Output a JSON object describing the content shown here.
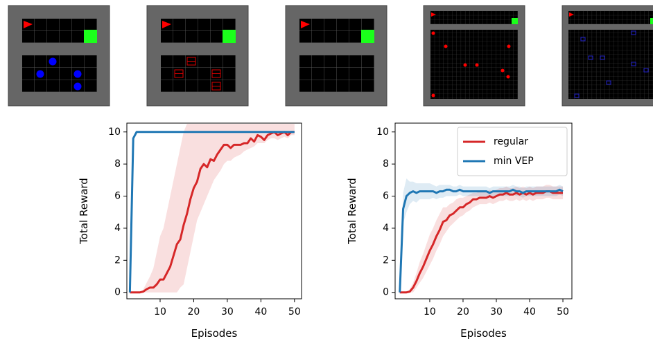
{
  "chart_data": [
    {
      "type": "line",
      "xlabel": "Episodes",
      "ylabel": "Total Reward",
      "x": [
        1,
        2,
        3,
        4,
        5,
        6,
        7,
        8,
        9,
        10,
        11,
        12,
        13,
        14,
        15,
        16,
        17,
        18,
        19,
        20,
        21,
        22,
        23,
        24,
        25,
        26,
        27,
        28,
        29,
        30,
        31,
        32,
        33,
        34,
        35,
        36,
        37,
        38,
        39,
        40,
        41,
        42,
        43,
        44,
        45,
        46,
        47,
        48,
        49,
        50
      ],
      "xlim": [
        0.1,
        52.1
      ],
      "xticks": [
        10,
        20,
        30,
        40,
        50
      ],
      "ylim": [
        -0.4,
        10.55
      ],
      "yticks": [
        0,
        2,
        4,
        6,
        8,
        10
      ],
      "series": [
        {
          "color": "#d62728",
          "values": [
            0,
            0,
            0,
            0,
            0.05,
            0.2,
            0.3,
            0.3,
            0.5,
            0.8,
            0.8,
            1.2,
            1.6,
            2.3,
            3.0,
            3.3,
            4.2,
            4.9,
            5.8,
            6.5,
            6.9,
            7.7,
            8.0,
            7.8,
            8.3,
            8.2,
            8.6,
            8.9,
            9.2,
            9.2,
            9.0,
            9.2,
            9.2,
            9.2,
            9.3,
            9.3,
            9.6,
            9.4,
            9.8,
            9.7,
            9.5,
            9.8,
            9.9,
            10.0,
            9.8,
            9.9,
            10.0,
            9.8,
            10.0,
            10.0
          ],
          "upper": [
            0,
            0,
            0,
            0,
            0.2,
            0.6,
            1.0,
            1.5,
            2.5,
            3.5,
            4.0,
            5.0,
            6.0,
            7.0,
            8.0,
            9.0,
            10.0,
            10.5,
            10.5,
            10.5,
            10.5,
            10.5,
            10.5,
            10.5,
            10.5,
            10.5,
            10.5,
            10.5,
            10.5,
            10.5,
            10.5,
            10.5,
            10.5,
            10.5,
            10.5,
            10.5,
            10.5,
            10.5,
            10.5,
            10.5,
            10.5,
            10.5,
            10.5,
            10.5,
            10.5,
            10.5,
            10.5,
            10.5,
            10.5,
            10.5
          ],
          "lower": [
            0,
            0,
            0,
            0,
            0,
            0,
            0,
            0,
            0,
            0,
            0,
            0,
            0,
            0,
            0,
            0.3,
            0.5,
            1.5,
            2.5,
            3.5,
            4.5,
            5.0,
            5.5,
            6.0,
            6.5,
            7.0,
            7.3,
            7.6,
            8.0,
            8.2,
            8.2,
            8.4,
            8.5,
            8.6,
            8.8,
            8.9,
            9.0,
            9.1,
            9.3,
            9.3,
            9.3,
            9.5,
            9.6,
            9.6,
            9.5,
            9.6,
            9.7,
            9.6,
            9.8,
            9.8
          ]
        },
        {
          "color": "#1f77b4",
          "values": [
            0,
            9.6,
            10,
            10,
            10,
            10,
            10,
            10,
            10,
            10,
            10,
            10,
            10,
            10,
            10,
            10,
            10,
            10,
            10,
            10,
            10,
            10,
            10,
            10,
            10,
            10,
            10,
            10,
            10,
            10,
            10,
            10,
            10,
            10,
            10,
            10,
            10,
            10,
            10,
            10,
            10,
            10,
            10,
            10,
            10,
            10,
            10,
            10,
            10,
            10
          ]
        }
      ]
    },
    {
      "type": "line",
      "xlabel": "Episodes",
      "ylabel": "Total Reward",
      "legend": "upper right",
      "x": [
        1,
        2,
        3,
        4,
        5,
        6,
        7,
        8,
        9,
        10,
        11,
        12,
        13,
        14,
        15,
        16,
        17,
        18,
        19,
        20,
        21,
        22,
        23,
        24,
        25,
        26,
        27,
        28,
        29,
        30,
        31,
        32,
        33,
        34,
        35,
        36,
        37,
        38,
        39,
        40,
        41,
        42,
        43,
        44,
        45,
        46,
        47,
        48,
        49,
        50
      ],
      "xlim": [
        -0.4,
        52.7
      ],
      "xticks": [
        10,
        20,
        30,
        40,
        50
      ],
      "ylim": [
        -0.4,
        10.55
      ],
      "yticks": [
        0,
        2,
        4,
        6,
        8,
        10
      ],
      "series": [
        {
          "name": "regular",
          "color": "#d62728",
          "values": [
            0,
            0,
            0,
            0.05,
            0.3,
            0.7,
            1.2,
            1.6,
            2.1,
            2.6,
            3.0,
            3.5,
            3.9,
            4.4,
            4.5,
            4.8,
            4.9,
            5.1,
            5.3,
            5.3,
            5.5,
            5.6,
            5.8,
            5.8,
            5.9,
            5.9,
            5.9,
            6.0,
            5.9,
            6.0,
            6.1,
            6.1,
            6.2,
            6.1,
            6.1,
            6.2,
            6.1,
            6.2,
            6.1,
            6.2,
            6.1,
            6.2,
            6.2,
            6.2,
            6.3,
            6.3,
            6.2,
            6.2,
            6.2,
            6.2
          ],
          "upper": [
            0,
            0,
            0,
            0.2,
            0.6,
            1.2,
            1.9,
            2.4,
            3.0,
            3.6,
            4.0,
            4.5,
            4.9,
            5.3,
            5.3,
            5.5,
            5.6,
            5.8,
            5.9,
            5.9,
            6.0,
            6.1,
            6.2,
            6.2,
            6.3,
            6.3,
            6.3,
            6.4,
            6.3,
            6.4,
            6.5,
            6.5,
            6.6,
            6.5,
            6.5,
            6.6,
            6.5,
            6.6,
            6.5,
            6.6,
            6.5,
            6.6,
            6.6,
            6.6,
            6.7,
            6.7,
            6.6,
            6.6,
            6.6,
            6.6
          ],
          "lower": [
            0,
            0,
            0,
            0,
            0,
            0.3,
            0.6,
            0.9,
            1.3,
            1.7,
            2.1,
            2.6,
            3.0,
            3.5,
            3.8,
            4.1,
            4.3,
            4.5,
            4.7,
            4.8,
            5.0,
            5.1,
            5.3,
            5.4,
            5.5,
            5.5,
            5.5,
            5.6,
            5.5,
            5.6,
            5.7,
            5.7,
            5.8,
            5.7,
            5.7,
            5.8,
            5.7,
            5.8,
            5.7,
            5.8,
            5.7,
            5.8,
            5.8,
            5.8,
            5.9,
            5.9,
            5.8,
            5.8,
            5.8,
            5.8
          ]
        },
        {
          "name": "min VEP",
          "color": "#1f77b4",
          "values": [
            0,
            5.2,
            6.0,
            6.2,
            6.3,
            6.2,
            6.3,
            6.3,
            6.3,
            6.3,
            6.3,
            6.2,
            6.3,
            6.3,
            6.4,
            6.4,
            6.3,
            6.3,
            6.4,
            6.3,
            6.3,
            6.3,
            6.3,
            6.3,
            6.3,
            6.3,
            6.3,
            6.2,
            6.3,
            6.3,
            6.3,
            6.3,
            6.3,
            6.3,
            6.4,
            6.3,
            6.3,
            6.2,
            6.3,
            6.3,
            6.3,
            6.3,
            6.3,
            6.3,
            6.3,
            6.3,
            6.3,
            6.3,
            6.4,
            6.3
          ],
          "upper": [
            0,
            6.2,
            7.1,
            6.9,
            6.9,
            6.8,
            6.8,
            6.8,
            6.8,
            6.8,
            6.7,
            6.6,
            6.7,
            6.7,
            6.7,
            6.7,
            6.6,
            6.6,
            6.7,
            6.6,
            6.6,
            6.6,
            6.6,
            6.6,
            6.6,
            6.6,
            6.6,
            6.5,
            6.6,
            6.6,
            6.6,
            6.6,
            6.6,
            6.6,
            6.7,
            6.6,
            6.6,
            6.5,
            6.6,
            6.6,
            6.6,
            6.6,
            6.6,
            6.6,
            6.6,
            6.6,
            6.6,
            6.6,
            6.7,
            6.6
          ],
          "lower": [
            0,
            4.3,
            5.0,
            5.5,
            5.7,
            5.6,
            5.8,
            5.8,
            5.8,
            5.8,
            5.9,
            5.8,
            5.9,
            5.9,
            6.0,
            6.0,
            6.0,
            6.0,
            6.1,
            6.0,
            6.0,
            6.0,
            6.0,
            6.0,
            6.0,
            6.0,
            6.0,
            5.9,
            6.0,
            6.0,
            6.0,
            6.0,
            6.0,
            6.0,
            6.1,
            6.0,
            6.0,
            5.9,
            6.0,
            6.0,
            6.0,
            6.0,
            6.0,
            6.0,
            6.0,
            6.0,
            6.0,
            6.0,
            6.1,
            6.0
          ]
        }
      ]
    }
  ]
}
